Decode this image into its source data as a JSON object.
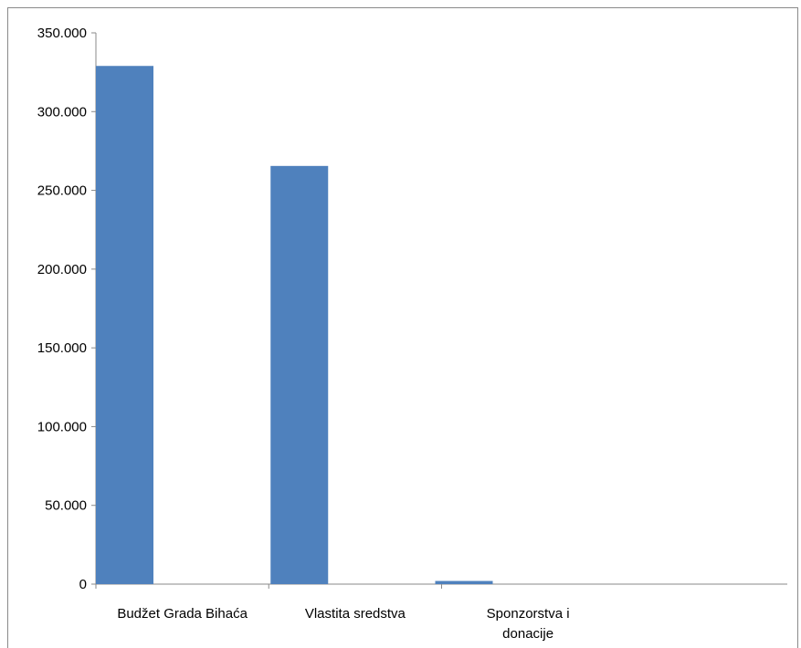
{
  "chart_data": {
    "type": "bar",
    "title": "",
    "xlabel": "",
    "ylabel": "",
    "categories": [
      [
        "Budžet Grada Bihaća"
      ],
      [
        "Vlastita sredstva"
      ],
      [
        "Sponzorstva i",
        "donacije"
      ]
    ],
    "values": [
      329000,
      265500,
      2000
    ],
    "ylim": [
      0,
      350000
    ],
    "yticks": [
      {
        "value": 0,
        "label": "0"
      },
      {
        "value": 50000,
        "label": "50.000"
      },
      {
        "value": 100000,
        "label": "100.000"
      },
      {
        "value": 150000,
        "label": "150.000"
      },
      {
        "value": 200000,
        "label": "200.000"
      },
      {
        "value": 250000,
        "label": "250.000"
      },
      {
        "value": 300000,
        "label": "300.000"
      },
      {
        "value": 350000,
        "label": "350.000"
      }
    ],
    "bar_color": "#4f81bd",
    "grid": false,
    "legend": "none"
  }
}
